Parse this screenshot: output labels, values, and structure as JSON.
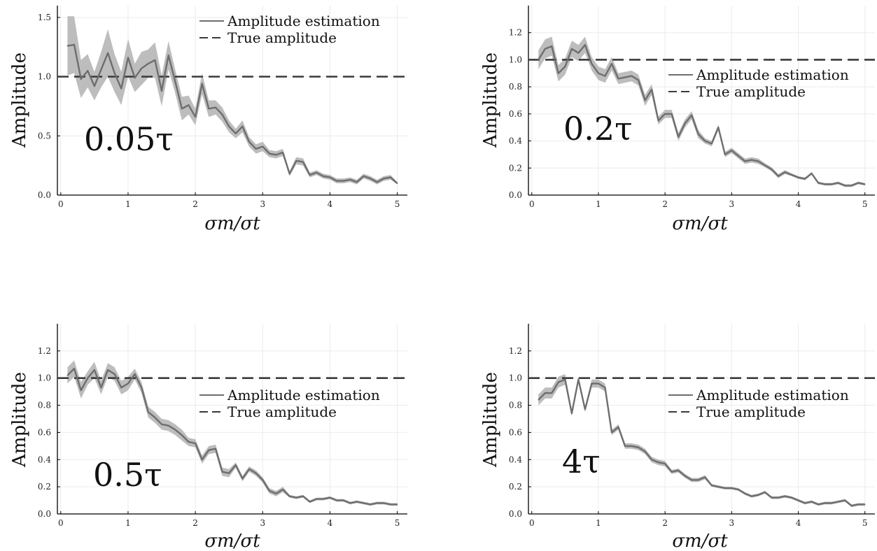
{
  "chart_data": [
    {
      "type": "line",
      "annotation": "0.05τ",
      "xlabel": "σm/σt",
      "ylabel": "Amplitude",
      "xlim": [
        -0.05,
        5.15
      ],
      "ylim": [
        0,
        1.6
      ],
      "xticks": [
        "0",
        "1",
        "2",
        "3",
        "4",
        "5"
      ],
      "yticks": [
        "0.0",
        "0.5",
        "1.0",
        "1.5"
      ],
      "ytick_values": [
        0,
        0.5,
        1.0,
        1.5
      ],
      "grid": true,
      "legend_position": "top-right",
      "legend": [
        "Amplitude estimation",
        "True amplitude"
      ],
      "true_amplitude": 1.0,
      "x": [
        0.1,
        0.2,
        0.3,
        0.4,
        0.5,
        0.6,
        0.7,
        0.8,
        0.9,
        1.0,
        1.1,
        1.2,
        1.3,
        1.4,
        1.5,
        1.6,
        1.7,
        1.8,
        1.9,
        2.0,
        2.1,
        2.2,
        2.3,
        2.4,
        2.5,
        2.6,
        2.7,
        2.8,
        2.9,
        3.0,
        3.1,
        3.2,
        3.3,
        3.4,
        3.5,
        3.6,
        3.7,
        3.8,
        3.9,
        4.0,
        4.1,
        4.2,
        4.3,
        4.4,
        4.5,
        4.6,
        4.7,
        4.8,
        4.9,
        5.0
      ],
      "values": [
        1.26,
        1.27,
        0.98,
        1.05,
        0.92,
        1.06,
        1.2,
        1.03,
        0.9,
        1.16,
        0.99,
        1.07,
        1.11,
        1.14,
        0.88,
        1.18,
        0.96,
        0.73,
        0.76,
        0.66,
        0.94,
        0.73,
        0.74,
        0.68,
        0.58,
        0.52,
        0.58,
        0.45,
        0.39,
        0.41,
        0.35,
        0.34,
        0.36,
        0.18,
        0.29,
        0.28,
        0.17,
        0.19,
        0.16,
        0.15,
        0.12,
        0.12,
        0.13,
        0.11,
        0.16,
        0.14,
        0.11,
        0.14,
        0.15,
        0.1
      ],
      "band": [
        0.25,
        0.24,
        0.16,
        0.14,
        0.12,
        0.15,
        0.2,
        0.16,
        0.14,
        0.16,
        0.12,
        0.14,
        0.12,
        0.15,
        0.13,
        0.12,
        0.1,
        0.1,
        0.08,
        0.07,
        0.09,
        0.07,
        0.06,
        0.06,
        0.05,
        0.04,
        0.05,
        0.04,
        0.04,
        0.04,
        0.03,
        0.03,
        0.03,
        0.02,
        0.03,
        0.03,
        0.02,
        0.02,
        0.02,
        0.02,
        0.02,
        0.02,
        0.02,
        0.02,
        0.02,
        0.02,
        0.02,
        0.02,
        0.02,
        0.01
      ]
    },
    {
      "type": "line",
      "annotation": "0.2τ",
      "xlabel": "σm/σt",
      "ylabel": "Amplitude",
      "xlim": [
        -0.05,
        5.15
      ],
      "ylim": [
        0,
        1.4
      ],
      "xticks": [
        "0",
        "1",
        "2",
        "3",
        "4",
        "5"
      ],
      "yticks": [
        "0.0",
        "0.2",
        "0.4",
        "0.6",
        "0.8",
        "1.0",
        "1.2"
      ],
      "ytick_values": [
        0,
        0.2,
        0.4,
        0.6,
        0.8,
        1.0,
        1.2
      ],
      "grid": true,
      "legend_position": "right",
      "legend": [
        "Amplitude estimation",
        "True amplitude"
      ],
      "true_amplitude": 1.0,
      "x": [
        0.1,
        0.2,
        0.3,
        0.4,
        0.5,
        0.6,
        0.7,
        0.8,
        0.9,
        1.0,
        1.1,
        1.2,
        1.3,
        1.4,
        1.5,
        1.6,
        1.7,
        1.8,
        1.9,
        2.0,
        2.1,
        2.2,
        2.3,
        2.4,
        2.5,
        2.6,
        2.7,
        2.8,
        2.9,
        3.0,
        3.1,
        3.2,
        3.3,
        3.4,
        3.5,
        3.6,
        3.7,
        3.8,
        3.9,
        4.0,
        4.1,
        4.2,
        4.3,
        4.4,
        4.5,
        4.6,
        4.7,
        4.8,
        4.9,
        5.0
      ],
      "values": [
        1.0,
        1.08,
        1.1,
        0.9,
        0.95,
        1.08,
        1.05,
        1.11,
        0.97,
        0.9,
        0.88,
        0.97,
        0.86,
        0.87,
        0.88,
        0.85,
        0.7,
        0.78,
        0.55,
        0.6,
        0.6,
        0.43,
        0.53,
        0.59,
        0.45,
        0.4,
        0.38,
        0.5,
        0.3,
        0.33,
        0.29,
        0.25,
        0.26,
        0.25,
        0.22,
        0.19,
        0.14,
        0.17,
        0.15,
        0.13,
        0.12,
        0.16,
        0.09,
        0.08,
        0.08,
        0.09,
        0.07,
        0.07,
        0.09,
        0.08
      ],
      "band": [
        0.07,
        0.07,
        0.07,
        0.06,
        0.06,
        0.06,
        0.06,
        0.06,
        0.05,
        0.05,
        0.05,
        0.05,
        0.04,
        0.04,
        0.04,
        0.04,
        0.04,
        0.04,
        0.03,
        0.03,
        0.03,
        0.03,
        0.03,
        0.03,
        0.03,
        0.02,
        0.02,
        0.02,
        0.02,
        0.02,
        0.02,
        0.02,
        0.02,
        0.02,
        0.015,
        0.015,
        0.015,
        0.015,
        0.01,
        0.01,
        0.01,
        0.01,
        0.01,
        0.01,
        0.01,
        0.01,
        0.01,
        0.01,
        0.01,
        0.01
      ]
    },
    {
      "type": "line",
      "annotation": "0.5τ",
      "xlabel": "σm/σt",
      "ylabel": "Amplitude",
      "xlim": [
        -0.05,
        5.15
      ],
      "ylim": [
        0,
        1.4
      ],
      "xticks": [
        "0",
        "1",
        "2",
        "3",
        "4",
        "5"
      ],
      "yticks": [
        "0.0",
        "0.2",
        "0.4",
        "0.6",
        "0.8",
        "1.0",
        "1.2"
      ],
      "ytick_values": [
        0,
        0.2,
        0.4,
        0.6,
        0.8,
        1.0,
        1.2
      ],
      "grid": true,
      "legend_position": "right",
      "legend": [
        "Amplitude estimation",
        "True amplitude"
      ],
      "true_amplitude": 1.0,
      "x": [
        0.1,
        0.2,
        0.3,
        0.4,
        0.5,
        0.6,
        0.7,
        0.8,
        0.9,
        1.0,
        1.1,
        1.2,
        1.3,
        1.4,
        1.5,
        1.6,
        1.7,
        1.8,
        1.9,
        2.0,
        2.1,
        2.2,
        2.3,
        2.4,
        2.5,
        2.6,
        2.7,
        2.8,
        2.9,
        3.0,
        3.1,
        3.2,
        3.3,
        3.4,
        3.5,
        3.6,
        3.7,
        3.8,
        3.9,
        4.0,
        4.1,
        4.2,
        4.3,
        4.4,
        4.5,
        4.6,
        4.7,
        4.8,
        4.9,
        5.0
      ],
      "values": [
        1.02,
        1.07,
        0.91,
        1.0,
        1.06,
        0.93,
        1.06,
        1.03,
        0.93,
        0.96,
        1.03,
        0.93,
        0.75,
        0.71,
        0.66,
        0.65,
        0.62,
        0.58,
        0.53,
        0.52,
        0.4,
        0.47,
        0.48,
        0.31,
        0.3,
        0.36,
        0.26,
        0.33,
        0.3,
        0.25,
        0.17,
        0.15,
        0.18,
        0.13,
        0.12,
        0.13,
        0.09,
        0.11,
        0.11,
        0.12,
        0.1,
        0.1,
        0.08,
        0.09,
        0.08,
        0.07,
        0.08,
        0.08,
        0.07,
        0.07
      ],
      "band": [
        0.06,
        0.06,
        0.06,
        0.05,
        0.06,
        0.05,
        0.05,
        0.05,
        0.05,
        0.05,
        0.04,
        0.04,
        0.04,
        0.04,
        0.04,
        0.04,
        0.04,
        0.04,
        0.03,
        0.03,
        0.03,
        0.03,
        0.03,
        0.03,
        0.03,
        0.02,
        0.02,
        0.02,
        0.02,
        0.02,
        0.02,
        0.02,
        0.02,
        0.01,
        0.01,
        0.01,
        0.01,
        0.01,
        0.01,
        0.01,
        0.01,
        0.01,
        0.01,
        0.01,
        0.01,
        0.01,
        0.01,
        0.01,
        0.01,
        0.01
      ]
    },
    {
      "type": "line",
      "annotation": "4τ",
      "xlabel": "σm/σt",
      "ylabel": "Amplitude",
      "xlim": [
        -0.05,
        5.15
      ],
      "ylim": [
        0,
        1.4
      ],
      "xticks": [
        "0",
        "1",
        "2",
        "3",
        "4",
        "5"
      ],
      "yticks": [
        "0.0",
        "0.2",
        "0.4",
        "0.6",
        "0.8",
        "1.0",
        "1.2"
      ],
      "ytick_values": [
        0,
        0.2,
        0.4,
        0.6,
        0.8,
        1.0,
        1.2
      ],
      "grid": true,
      "legend_position": "right",
      "legend": [
        "Amplitude estimation",
        "True amplitude"
      ],
      "true_amplitude": 1.0,
      "x": [
        0.1,
        0.2,
        0.3,
        0.4,
        0.5,
        0.6,
        0.7,
        0.8,
        0.9,
        1.0,
        1.1,
        1.2,
        1.3,
        1.4,
        1.5,
        1.6,
        1.7,
        1.8,
        1.9,
        2.0,
        2.1,
        2.2,
        2.3,
        2.4,
        2.5,
        2.6,
        2.7,
        2.8,
        2.9,
        3.0,
        3.1,
        3.2,
        3.3,
        3.4,
        3.5,
        3.6,
        3.7,
        3.8,
        3.9,
        4.0,
        4.1,
        4.2,
        4.3,
        4.4,
        4.5,
        4.6,
        4.7,
        4.8,
        4.9,
        5.0
      ],
      "values": [
        0.84,
        0.89,
        0.89,
        0.97,
        0.99,
        0.74,
        0.99,
        0.77,
        0.96,
        0.96,
        0.93,
        0.6,
        0.64,
        0.5,
        0.5,
        0.49,
        0.46,
        0.4,
        0.38,
        0.37,
        0.31,
        0.32,
        0.28,
        0.25,
        0.25,
        0.27,
        0.21,
        0.2,
        0.19,
        0.19,
        0.18,
        0.15,
        0.13,
        0.14,
        0.16,
        0.12,
        0.12,
        0.13,
        0.12,
        0.1,
        0.08,
        0.09,
        0.07,
        0.08,
        0.08,
        0.09,
        0.1,
        0.06,
        0.07,
        0.07
      ],
      "band": [
        0.04,
        0.04,
        0.04,
        0.04,
        0.04,
        0.02,
        0.02,
        0.02,
        0.03,
        0.03,
        0.03,
        0.02,
        0.02,
        0.02,
        0.02,
        0.02,
        0.02,
        0.02,
        0.02,
        0.02,
        0.015,
        0.015,
        0.015,
        0.015,
        0.015,
        0.015,
        0.01,
        0.01,
        0.01,
        0.01,
        0.01,
        0.01,
        0.01,
        0.01,
        0.01,
        0.01,
        0.01,
        0.01,
        0.01,
        0.01,
        0.01,
        0.01,
        0.01,
        0.01,
        0.01,
        0.01,
        0.01,
        0.01,
        0.01,
        0.01
      ]
    }
  ],
  "style": {
    "line_color": "#6e6e6e",
    "band_color": "#bdbdbd",
    "true_line_color": "#3a3a3a",
    "grid_color": "#ebebeb"
  }
}
